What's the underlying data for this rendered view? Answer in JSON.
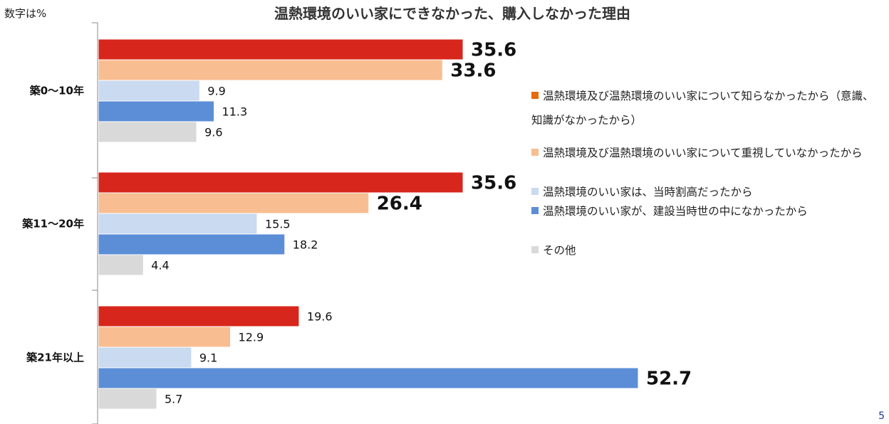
{
  "page": {
    "unit_note": "数字は%",
    "page_number": "5"
  },
  "chart_data": {
    "type": "bar",
    "orientation": "horizontal",
    "title": "温熱環境のいい家にできなかった、購入しなかった理由",
    "xlabel": "",
    "ylabel": "",
    "xlim": [
      0,
      55
    ],
    "grid": false,
    "legend_position": "right",
    "categories": [
      "築0～10年",
      "築11～20年",
      "築21年以上"
    ],
    "series": [
      {
        "name": "温熱環境及び温熱環境のいい家について知らなかったから（意識、知識がなかったから）",
        "color": "#d7261b",
        "values": [
          35.6,
          35.6,
          19.6
        ]
      },
      {
        "name": "温熱環境及び温熱環境のいい家について重視していなかったから",
        "color": "#f8be91",
        "values": [
          33.6,
          26.4,
          12.9
        ]
      },
      {
        "name": "温熱環境のいい家は、当時割高だったから",
        "color": "#c9daf1",
        "values": [
          9.9,
          15.5,
          9.1
        ]
      },
      {
        "name": "温熱環境のいい家が、建設当時世の中になかったから",
        "color": "#5b8ed6",
        "values": [
          11.3,
          18.2,
          52.7
        ]
      },
      {
        "name": "その他",
        "color": "#d9d9d9",
        "values": [
          9.6,
          4.4,
          5.7
        ]
      }
    ],
    "value_labels": [
      [
        "35.6",
        "33.6",
        "9.9",
        "11.3",
        "9.6"
      ],
      [
        "35.6",
        "26.4",
        "15.5",
        "18.2",
        "4.4"
      ],
      [
        "19.6",
        "12.9",
        "9.1",
        "52.7",
        "5.7"
      ]
    ],
    "emphasized_labels": [
      [
        true,
        true,
        false,
        false,
        false
      ],
      [
        true,
        true,
        false,
        false,
        false
      ],
      [
        false,
        false,
        false,
        true,
        false
      ]
    ]
  },
  "legend": {
    "items": [
      {
        "label_line1": "温熱環境及び温熱環境のいい家について知らなかったから（意識、",
        "label_line2": "知識がなかったから）",
        "swatch_color": "#e46c0a"
      },
      {
        "label_line1": "温熱環境及び温熱環境のいい家について重視していなかったから",
        "swatch_color": "#f8be91"
      },
      {
        "label_line1": "温熱環境のいい家は、当時割高だったから",
        "swatch_color": "#c9daf1"
      },
      {
        "label_line1": "温熱環境のいい家が、建設当時世の中になかったから",
        "swatch_color": "#5b8ed6"
      },
      {
        "label_line1": "その他",
        "swatch_color": "#d9d9d9"
      }
    ]
  }
}
